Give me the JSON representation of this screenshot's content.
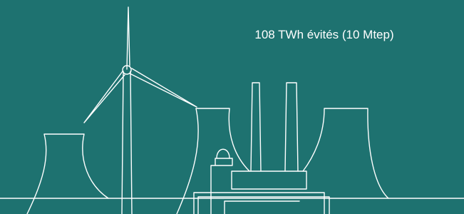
{
  "caption": "108 TWh évités (10 Mtep)"
}
